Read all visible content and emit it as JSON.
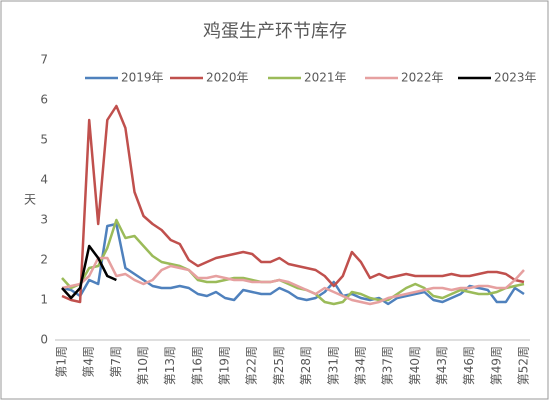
{
  "chart_data": {
    "type": "line",
    "title": "鸡蛋生产环节库存",
    "y_label": "天",
    "categories": [
      "第1周",
      null,
      null,
      "第4周",
      null,
      null,
      "第7周",
      null,
      null,
      "第10周",
      null,
      null,
      "第13周",
      null,
      null,
      "第16周",
      null,
      null,
      "第19周",
      null,
      null,
      "第22周",
      null,
      null,
      "第25周",
      null,
      null,
      "第28周",
      null,
      null,
      "第31周",
      null,
      null,
      "第34周",
      null,
      null,
      "第37周",
      null,
      null,
      "第40周",
      null,
      null,
      "第43周",
      null,
      null,
      "第46周",
      null,
      null,
      "第49周",
      null,
      null,
      "第52周"
    ],
    "series": [
      {
        "name": "2019年",
        "color": "#4f81bd",
        "values": [
          1.3,
          1.25,
          1.1,
          1.5,
          1.4,
          2.85,
          2.9,
          1.8,
          1.65,
          1.5,
          1.35,
          1.3,
          1.3,
          1.35,
          1.3,
          1.15,
          1.1,
          1.2,
          1.05,
          1.0,
          1.25,
          1.2,
          1.15,
          1.15,
          1.3,
          1.2,
          1.05,
          1.0,
          1.05,
          1.2,
          1.45,
          1.1,
          1.15,
          1.05,
          1.0,
          1.05,
          0.9,
          1.05,
          1.1,
          1.15,
          1.2,
          1.0,
          0.95,
          1.05,
          1.15,
          1.35,
          1.3,
          1.25,
          0.95,
          0.95,
          1.3,
          1.15
        ]
      },
      {
        "name": "2020年",
        "color": "#c0504d",
        "values": [
          1.1,
          1.0,
          0.95,
          5.5,
          2.9,
          5.5,
          5.85,
          5.3,
          3.7,
          3.1,
          2.9,
          2.75,
          2.5,
          2.4,
          2.0,
          1.85,
          1.95,
          2.05,
          2.1,
          2.15,
          2.2,
          2.15,
          1.95,
          1.95,
          2.05,
          1.9,
          1.85,
          1.8,
          1.75,
          1.6,
          1.35,
          1.6,
          2.2,
          1.95,
          1.55,
          1.65,
          1.55,
          1.6,
          1.65,
          1.6,
          1.6,
          1.6,
          1.6,
          1.65,
          1.6,
          1.6,
          1.65,
          1.7,
          1.7,
          1.65,
          1.5,
          1.45
        ]
      },
      {
        "name": "2021年",
        "color": "#9bbb59",
        "values": [
          1.55,
          1.3,
          1.4,
          1.8,
          1.85,
          2.3,
          3.0,
          2.55,
          2.6,
          2.35,
          2.1,
          1.95,
          1.9,
          1.85,
          1.75,
          1.5,
          1.45,
          1.45,
          1.5,
          1.55,
          1.55,
          1.5,
          1.45,
          1.45,
          1.5,
          1.4,
          1.3,
          1.25,
          1.15,
          0.95,
          0.9,
          0.95,
          1.2,
          1.15,
          1.05,
          1.0,
          1.0,
          1.15,
          1.3,
          1.4,
          1.3,
          1.1,
          1.05,
          1.15,
          1.25,
          1.2,
          1.15,
          1.15,
          1.2,
          1.3,
          1.35,
          1.4
        ]
      },
      {
        "name": "2022年",
        "color": "#e6a0a0",
        "values": [
          1.3,
          1.35,
          1.4,
          1.6,
          2.05,
          2.05,
          1.6,
          1.65,
          1.5,
          1.4,
          1.5,
          1.75,
          1.85,
          1.8,
          1.75,
          1.55,
          1.55,
          1.6,
          1.55,
          1.5,
          1.5,
          1.45,
          1.45,
          1.45,
          1.5,
          1.45,
          1.35,
          1.25,
          1.15,
          1.3,
          1.2,
          1.1,
          1.0,
          0.95,
          0.9,
          0.95,
          1.05,
          1.1,
          1.15,
          1.2,
          1.25,
          1.3,
          1.3,
          1.25,
          1.3,
          1.3,
          1.35,
          1.35,
          1.3,
          1.3,
          1.5,
          1.75
        ]
      },
      {
        "name": "2023年",
        "color": "#000000",
        "values": [
          1.3,
          1.05,
          1.3,
          2.35,
          2.05,
          1.6,
          1.5,
          null,
          null,
          null,
          null,
          null,
          null,
          null,
          null,
          null,
          null,
          null,
          null,
          null,
          null,
          null,
          null,
          null,
          null,
          null,
          null,
          null,
          null,
          null,
          null,
          null,
          null,
          null,
          null,
          null,
          null,
          null,
          null,
          null,
          null,
          null,
          null,
          null,
          null,
          null,
          null,
          null,
          null,
          null,
          null,
          null
        ]
      }
    ],
    "ylim": [
      0,
      7
    ],
    "yticks": [
      0,
      1,
      2,
      3,
      4,
      5,
      6,
      7
    ],
    "grid": false,
    "legend": "top"
  }
}
